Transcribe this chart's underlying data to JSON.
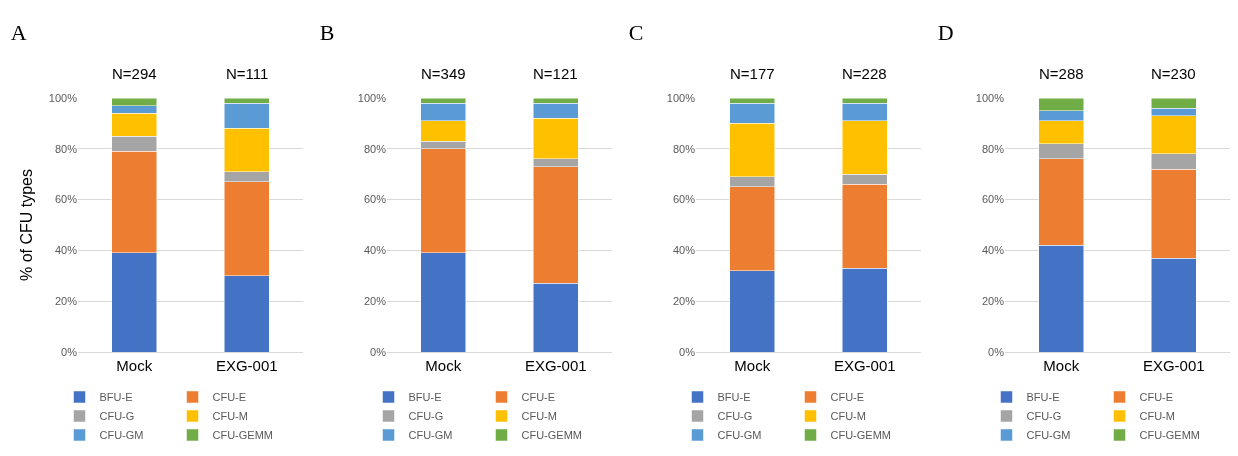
{
  "chart_data": [
    {
      "type": "bar",
      "title": "A",
      "ylabel": "% of CFU types",
      "stacked": true,
      "categories": [
        "Mock",
        "EXG-001"
      ],
      "ylim": [
        0,
        100
      ],
      "yticks": [
        {
          "value": 0,
          "label": "0%"
        },
        {
          "value": 20,
          "label": "20%"
        },
        {
          "value": 40,
          "label": "40%"
        },
        {
          "value": 60,
          "label": "60%"
        },
        {
          "value": 80,
          "label": "80%"
        },
        {
          "value": 100,
          "label": "100%"
        }
      ],
      "grid": "y",
      "legend": "bottom",
      "annotations": [
        {
          "text": "N=294",
          "x": "Mock",
          "y": 100
        },
        {
          "text": "N=111",
          "x": "EXG-001",
          "y": 100
        }
      ],
      "series": [
        {
          "name": "BFU-E",
          "color": "#4472c4",
          "values": [
            39,
            30
          ]
        },
        {
          "name": "CFU-E",
          "color": "#ed7d31",
          "values": [
            40,
            37
          ]
        },
        {
          "name": "CFU-G",
          "color": "#a5a5a5",
          "values": [
            6,
            4
          ]
        },
        {
          "name": "CFU-M",
          "color": "#ffc000",
          "values": [
            9,
            17
          ]
        },
        {
          "name": "CFU-GM",
          "color": "#5b9bd5",
          "values": [
            3,
            10
          ]
        },
        {
          "name": "CFU-GEMM",
          "color": "#70ad47",
          "values": [
            3,
            2
          ]
        }
      ]
    },
    {
      "type": "bar",
      "title": "B",
      "stacked": true,
      "categories": [
        "Mock",
        "EXG-001"
      ],
      "ylim": [
        0,
        100
      ],
      "yticks": [
        {
          "value": 0,
          "label": "0%"
        },
        {
          "value": 20,
          "label": "20%"
        },
        {
          "value": 40,
          "label": "40%"
        },
        {
          "value": 60,
          "label": "60%"
        },
        {
          "value": 80,
          "label": "80%"
        },
        {
          "value": 100,
          "label": "100%"
        }
      ],
      "grid": "y",
      "legend": "bottom",
      "annotations": [
        {
          "text": "N=349",
          "x": "Mock",
          "y": 100
        },
        {
          "text": "N=121",
          "x": "EXG-001",
          "y": 100
        }
      ],
      "series": [
        {
          "name": "BFU-E",
          "color": "#4472c4",
          "values": [
            39,
            27
          ]
        },
        {
          "name": "CFU-E",
          "color": "#ed7d31",
          "values": [
            41,
            46
          ]
        },
        {
          "name": "CFU-G",
          "color": "#a5a5a5",
          "values": [
            3,
            3
          ]
        },
        {
          "name": "CFU-M",
          "color": "#ffc000",
          "values": [
            8,
            16
          ]
        },
        {
          "name": "CFU-GM",
          "color": "#5b9bd5",
          "values": [
            7,
            6
          ]
        },
        {
          "name": "CFU-GEMM",
          "color": "#70ad47",
          "values": [
            2,
            2
          ]
        }
      ]
    },
    {
      "type": "bar",
      "title": "C",
      "stacked": true,
      "categories": [
        "Mock",
        "EXG-001"
      ],
      "ylim": [
        0,
        100
      ],
      "yticks": [
        {
          "value": 0,
          "label": "0%"
        },
        {
          "value": 20,
          "label": "20%"
        },
        {
          "value": 40,
          "label": "40%"
        },
        {
          "value": 60,
          "label": "60%"
        },
        {
          "value": 80,
          "label": "80%"
        },
        {
          "value": 100,
          "label": "100%"
        }
      ],
      "grid": "y",
      "legend": "bottom",
      "annotations": [
        {
          "text": "N=177",
          "x": "Mock",
          "y": 100
        },
        {
          "text": "N=228",
          "x": "EXG-001",
          "y": 100
        }
      ],
      "series": [
        {
          "name": "BFU-E",
          "color": "#4472c4",
          "values": [
            32,
            33
          ]
        },
        {
          "name": "CFU-E",
          "color": "#ed7d31",
          "values": [
            33,
            33
          ]
        },
        {
          "name": "CFU-G",
          "color": "#a5a5a5",
          "values": [
            4,
            4
          ]
        },
        {
          "name": "CFU-M",
          "color": "#ffc000",
          "values": [
            21,
            21
          ]
        },
        {
          "name": "CFU-GM",
          "color": "#5b9bd5",
          "values": [
            8,
            7
          ]
        },
        {
          "name": "CFU-GEMM",
          "color": "#70ad47",
          "values": [
            2,
            2
          ]
        }
      ]
    },
    {
      "type": "bar",
      "title": "D",
      "stacked": true,
      "categories": [
        "Mock",
        "EXG-001"
      ],
      "ylim": [
        0,
        100
      ],
      "yticks": [
        {
          "value": 0,
          "label": "0%"
        },
        {
          "value": 20,
          "label": "20%"
        },
        {
          "value": 40,
          "label": "40%"
        },
        {
          "value": 60,
          "label": "60%"
        },
        {
          "value": 80,
          "label": "80%"
        },
        {
          "value": 100,
          "label": "100%"
        }
      ],
      "grid": "y",
      "legend": "bottom",
      "annotations": [
        {
          "text": "N=288",
          "x": "Mock",
          "y": 100
        },
        {
          "text": "N=230",
          "x": "EXG-001",
          "y": 100
        }
      ],
      "series": [
        {
          "name": "BFU-E",
          "color": "#4472c4",
          "values": [
            42,
            37
          ]
        },
        {
          "name": "CFU-E",
          "color": "#ed7d31",
          "values": [
            34,
            35
          ]
        },
        {
          "name": "CFU-G",
          "color": "#a5a5a5",
          "values": [
            6,
            6
          ]
        },
        {
          "name": "CFU-M",
          "color": "#ffc000",
          "values": [
            9,
            15
          ]
        },
        {
          "name": "CFU-GM",
          "color": "#5b9bd5",
          "values": [
            4,
            3
          ]
        },
        {
          "name": "CFU-GEMM",
          "color": "#70ad47",
          "values": [
            5,
            4
          ]
        }
      ]
    }
  ]
}
